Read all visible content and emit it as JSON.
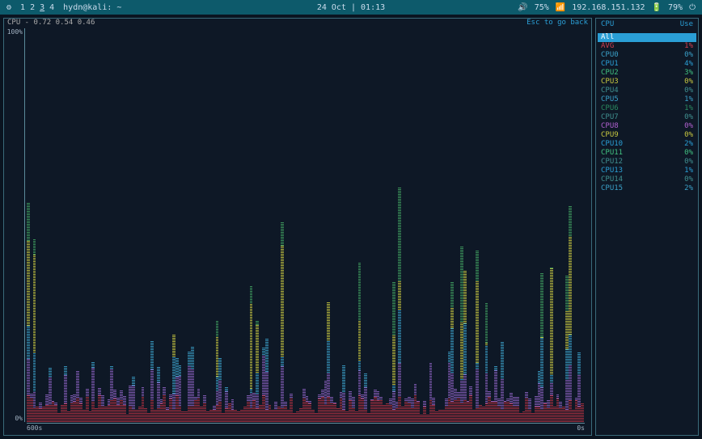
{
  "topbar": {
    "workspaces": [
      "1",
      "2",
      "3",
      "4"
    ],
    "active_ws": "3",
    "title": "hydn@kali: ~",
    "datetime": "24 Oct | 01:13",
    "vol_icon": "🔊",
    "vol": "75%",
    "net_icon": "📶",
    "ip": "192.168.151.132",
    "bat_icon": "🔋",
    "bat": "79%",
    "power_icon": "⏻"
  },
  "chart": {
    "title": "CPU - 0.72 0.54 0.46",
    "hint": "Esc to go back",
    "y_top": "100%",
    "y_bot": "0%",
    "x_left": "600s",
    "x_right": "0s",
    "columns": 180,
    "series_colors": {
      "base": "#b03040",
      "low": "#8a60c0",
      "mid": "#3aa0c8",
      "hi": "#c8c840",
      "alt": "#40a060"
    },
    "heights": []
  },
  "cpu_table": {
    "header": {
      "c1": "CPU",
      "c2": "Use"
    },
    "rows": [
      {
        "label": "All",
        "value": "",
        "color": "#ffffff",
        "selected": true
      },
      {
        "label": "AVG",
        "value": "1%",
        "color": "#d04050"
      },
      {
        "label": "CPU0",
        "value": "0%",
        "color": "#3aa0c8"
      },
      {
        "label": "CPU1",
        "value": "4%",
        "color": "#2a9fd6"
      },
      {
        "label": "CPU2",
        "value": "3%",
        "color": "#40c080"
      },
      {
        "label": "CPU3",
        "value": "0%",
        "color": "#c8c840"
      },
      {
        "label": "CPU4",
        "value": "0%",
        "color": "#409090"
      },
      {
        "label": "CPU5",
        "value": "1%",
        "color": "#3aa0c8"
      },
      {
        "label": "CPU6",
        "value": "1%",
        "color": "#2a8a60"
      },
      {
        "label": "CPU7",
        "value": "0%",
        "color": "#409090"
      },
      {
        "label": "CPU8",
        "value": "0%",
        "color": "#b060d0"
      },
      {
        "label": "CPU9",
        "value": "0%",
        "color": "#c8c840"
      },
      {
        "label": "CPU10",
        "value": "2%",
        "color": "#2a9fd6"
      },
      {
        "label": "CPU11",
        "value": "0%",
        "color": "#40c080"
      },
      {
        "label": "CPU12",
        "value": "0%",
        "color": "#409090"
      },
      {
        "label": "CPU13",
        "value": "1%",
        "color": "#2a9fd6"
      },
      {
        "label": "CPU14",
        "value": "0%",
        "color": "#409090"
      },
      {
        "label": "CPU15",
        "value": "2%",
        "color": "#3aa0c8"
      }
    ]
  }
}
